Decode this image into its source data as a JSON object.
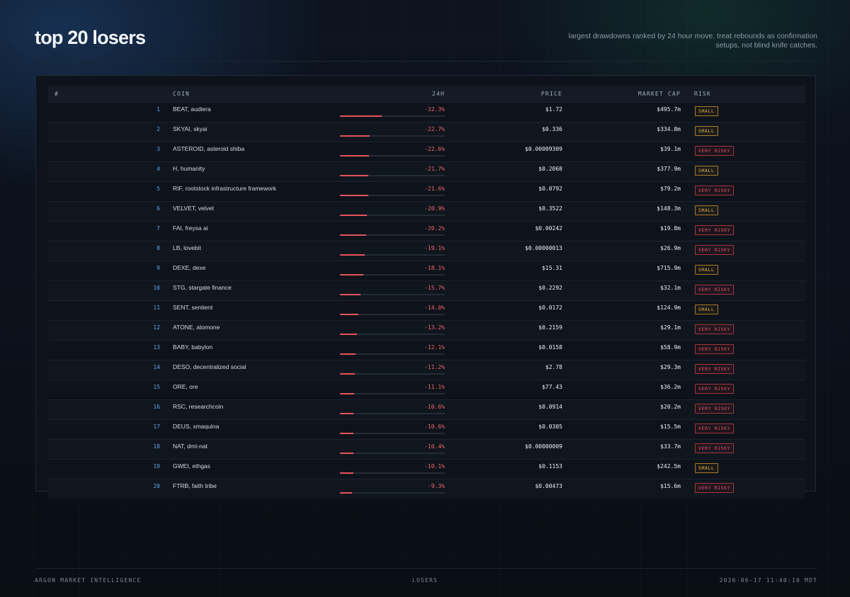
{
  "header": {
    "title": "top 20 losers",
    "subtitle": "largest drawdowns ranked by 24 hour move. treat rebounds as confirmation setups, not blind knife catches."
  },
  "table": {
    "columns": {
      "rank": "#",
      "coin": "COIN",
      "change": "24H",
      "price": "PRICE",
      "mcap": "MARKET CAP",
      "risk": "RISK"
    },
    "max_abs_change": 32.3,
    "rows": [
      {
        "rank": "1",
        "coin": "BEAT, audiera",
        "change": "-32.3%",
        "change_value": -32.3,
        "price": "$1.72",
        "mcap": "$495.7m",
        "risk": "SMALL"
      },
      {
        "rank": "2",
        "coin": "SKYAI, skyai",
        "change": "-22.7%",
        "change_value": -22.7,
        "price": "$0.336",
        "mcap": "$334.8m",
        "risk": "SMALL"
      },
      {
        "rank": "3",
        "coin": "ASTEROID, asteroid shiba",
        "change": "-22.6%",
        "change_value": -22.6,
        "price": "$0.00009309",
        "mcap": "$39.1m",
        "risk": "VERY RISKY"
      },
      {
        "rank": "4",
        "coin": "H, humanity",
        "change": "-21.7%",
        "change_value": -21.7,
        "price": "$0.2068",
        "mcap": "$377.9m",
        "risk": "SMALL"
      },
      {
        "rank": "5",
        "coin": "RIF, rootstock infrastructure framework",
        "change": "-21.6%",
        "change_value": -21.6,
        "price": "$0.0792",
        "mcap": "$79.2m",
        "risk": "VERY RISKY"
      },
      {
        "rank": "6",
        "coin": "VELVET, velvet",
        "change": "-20.9%",
        "change_value": -20.9,
        "price": "$0.3522",
        "mcap": "$148.3m",
        "risk": "SMALL"
      },
      {
        "rank": "7",
        "coin": "FAI, freysa ai",
        "change": "-20.2%",
        "change_value": -20.2,
        "price": "$0.00242",
        "mcap": "$19.8m",
        "risk": "VERY RISKY"
      },
      {
        "rank": "8",
        "coin": "LB, lovebit",
        "change": "-19.1%",
        "change_value": -19.1,
        "price": "$0.00000013",
        "mcap": "$26.9m",
        "risk": "VERY RISKY"
      },
      {
        "rank": "9",
        "coin": "DEXE, dexe",
        "change": "-18.1%",
        "change_value": -18.1,
        "price": "$15.31",
        "mcap": "$715.9m",
        "risk": "SMALL"
      },
      {
        "rank": "10",
        "coin": "STG, stargate finance",
        "change": "-15.7%",
        "change_value": -15.7,
        "price": "$0.2292",
        "mcap": "$32.1m",
        "risk": "VERY RISKY"
      },
      {
        "rank": "11",
        "coin": "SENT, sentient",
        "change": "-14.0%",
        "change_value": -14.0,
        "price": "$0.0172",
        "mcap": "$124.9m",
        "risk": "SMALL"
      },
      {
        "rank": "12",
        "coin": "ATONE, atomone",
        "change": "-13.2%",
        "change_value": -13.2,
        "price": "$0.2159",
        "mcap": "$29.1m",
        "risk": "VERY RISKY"
      },
      {
        "rank": "13",
        "coin": "BABY, babylon",
        "change": "-12.1%",
        "change_value": -12.1,
        "price": "$0.0158",
        "mcap": "$58.9m",
        "risk": "VERY RISKY"
      },
      {
        "rank": "14",
        "coin": "DESO, decentralized social",
        "change": "-11.2%",
        "change_value": -11.2,
        "price": "$2.78",
        "mcap": "$29.3m",
        "risk": "VERY RISKY"
      },
      {
        "rank": "15",
        "coin": "ORE, ore",
        "change": "-11.1%",
        "change_value": -11.1,
        "price": "$77.43",
        "mcap": "$36.2m",
        "risk": "VERY RISKY"
      },
      {
        "rank": "16",
        "coin": "RSC, researchcoin",
        "change": "-10.6%",
        "change_value": -10.6,
        "price": "$0.0914",
        "mcap": "$20.2m",
        "risk": "VERY RISKY"
      },
      {
        "rank": "17",
        "coin": "DEUS, xmaquina",
        "change": "-10.6%",
        "change_value": -10.6,
        "price": "$0.0305",
        "mcap": "$15.5m",
        "risk": "VERY RISKY"
      },
      {
        "rank": "18",
        "coin": "NAT, dmt-nat",
        "change": "-10.4%",
        "change_value": -10.4,
        "price": "$0.00000009",
        "mcap": "$33.7m",
        "risk": "VERY RISKY"
      },
      {
        "rank": "19",
        "coin": "GWEI, ethgas",
        "change": "-10.1%",
        "change_value": -10.1,
        "price": "$0.1153",
        "mcap": "$242.5m",
        "risk": "SMALL"
      },
      {
        "rank": "20",
        "coin": "FTRB, faith tribe",
        "change": "-9.3%",
        "change_value": -9.3,
        "price": "$0.00473",
        "mcap": "$15.6m",
        "risk": "VERY RISKY"
      }
    ]
  },
  "colors": {
    "negative": "#f0646b",
    "rank": "#5fa2e6",
    "small_badge": "#e0ad4a",
    "risky_badge": "#e15560"
  },
  "footer": {
    "brand": "ARGON MARKET INTELLIGENCE",
    "section": "LOSERS",
    "timestamp": "2026-06-17 11:40:10 MDT"
  }
}
